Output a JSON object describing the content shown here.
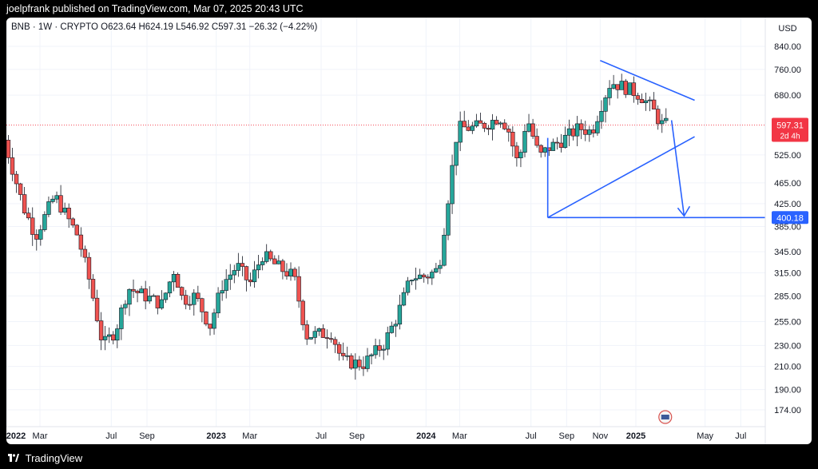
{
  "header": {
    "text": "joelpfrank published on TradingView.com, Mar 07, 2025 20:43 UTC"
  },
  "legend": {
    "symbol": "BNB",
    "interval": "1W",
    "exchange": "CRYPTO",
    "open": "O623.64",
    "high": "H624.19",
    "low": "L546.92",
    "close": "C597.31",
    "change": "−26.32 (−4.22%)"
  },
  "footer": {
    "brand": "TradingView"
  },
  "colors": {
    "up": "#26a69a",
    "down": "#ef5350",
    "drawing": "#2962ff",
    "price_badge": "#f23645"
  },
  "chart_data": {
    "type": "candlestick",
    "title": "BNB · 1W · CRYPTO",
    "currency": "USD",
    "y_scale": "log",
    "y_ticks": [
      "840.00",
      "760.00",
      "680.00",
      "525.00",
      "465.00",
      "425.00",
      "385.00",
      "345.00",
      "315.00",
      "285.00",
      "255.00",
      "230.00",
      "210.00",
      "190.00",
      "174.00"
    ],
    "x_ticks": [
      {
        "label": "2022",
        "t": 2022.0
      },
      {
        "label": "Mar",
        "t": 2022.16
      },
      {
        "label": "Jul",
        "t": 2022.5
      },
      {
        "label": "Sep",
        "t": 2022.67
      },
      {
        "label": "2023",
        "t": 2023.0
      },
      {
        "label": "Mar",
        "t": 2023.16
      },
      {
        "label": "Jul",
        "t": 2023.5
      },
      {
        "label": "Sep",
        "t": 2023.67
      },
      {
        "label": "2024",
        "t": 2024.0
      },
      {
        "label": "Mar",
        "t": 2024.16
      },
      {
        "label": "Jul",
        "t": 2024.5
      },
      {
        "label": "Sep",
        "t": 2024.67
      },
      {
        "label": "Nov",
        "t": 2024.83
      },
      {
        "label": "2025",
        "t": 2025.0
      },
      {
        "label": "May",
        "t": 2025.33
      },
      {
        "label": "Jul",
        "t": 2025.5
      }
    ],
    "current_price": {
      "value": 597.31,
      "label": "597.31",
      "countdown": "2d 4h"
    },
    "level": {
      "value": 400.18,
      "label": "400.18"
    },
    "key_points": [
      {
        "t": 2021.99,
        "close": 560
      },
      {
        "t": 2022.08,
        "close": 420
      },
      {
        "t": 2022.14,
        "close": 370
      },
      {
        "t": 2022.23,
        "close": 440
      },
      {
        "t": 2022.34,
        "close": 370
      },
      {
        "t": 2022.4,
        "close": 300
      },
      {
        "t": 2022.46,
        "close": 230
      },
      {
        "t": 2022.52,
        "close": 245
      },
      {
        "t": 2022.58,
        "close": 295
      },
      {
        "t": 2022.66,
        "close": 285
      },
      {
        "t": 2022.74,
        "close": 275
      },
      {
        "t": 2022.8,
        "close": 320
      },
      {
        "t": 2022.84,
        "close": 280
      },
      {
        "t": 2022.9,
        "close": 285
      },
      {
        "t": 2022.97,
        "close": 250
      },
      {
        "t": 2023.03,
        "close": 300
      },
      {
        "t": 2023.1,
        "close": 325
      },
      {
        "t": 2023.16,
        "close": 300
      },
      {
        "t": 2023.22,
        "close": 340
      },
      {
        "t": 2023.31,
        "close": 320
      },
      {
        "t": 2023.37,
        "close": 310
      },
      {
        "t": 2023.43,
        "close": 240
      },
      {
        "t": 2023.55,
        "close": 243
      },
      {
        "t": 2023.6,
        "close": 215
      },
      {
        "t": 2023.7,
        "close": 212
      },
      {
        "t": 2023.8,
        "close": 232
      },
      {
        "t": 2023.86,
        "close": 260
      },
      {
        "t": 2023.93,
        "close": 310
      },
      {
        "t": 2024.0,
        "close": 310
      },
      {
        "t": 2024.06,
        "close": 320
      },
      {
        "t": 2024.1,
        "close": 420
      },
      {
        "t": 2024.15,
        "close": 590
      },
      {
        "t": 2024.22,
        "close": 590
      },
      {
        "t": 2024.29,
        "close": 600
      },
      {
        "t": 2024.35,
        "close": 620
      },
      {
        "t": 2024.39,
        "close": 590
      },
      {
        "t": 2024.44,
        "close": 500
      },
      {
        "t": 2024.48,
        "close": 620
      },
      {
        "t": 2024.54,
        "close": 520
      },
      {
        "t": 2024.58,
        "close": 540
      },
      {
        "t": 2024.65,
        "close": 560
      },
      {
        "t": 2024.73,
        "close": 590
      },
      {
        "t": 2024.79,
        "close": 580
      },
      {
        "t": 2024.84,
        "close": 660
      },
      {
        "t": 2024.88,
        "close": 720
      },
      {
        "t": 2024.96,
        "close": 700
      },
      {
        "t": 2025.02,
        "close": 680
      },
      {
        "t": 2025.08,
        "close": 640
      },
      {
        "t": 2025.12,
        "close": 600
      },
      {
        "t": 2025.16,
        "close": 597
      }
    ]
  }
}
